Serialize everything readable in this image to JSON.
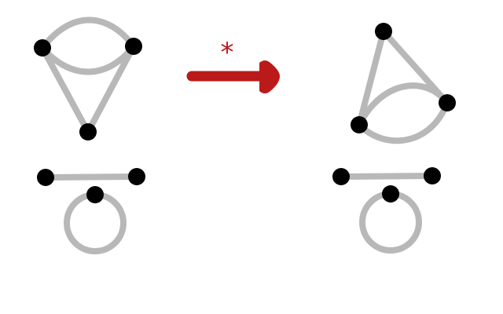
{
  "colors": {
    "background": "#ffffff",
    "edge": "#b8b8b8",
    "vertex": "#000000",
    "arrow": "#bb1a1a"
  },
  "arrow": {
    "label": "*"
  }
}
